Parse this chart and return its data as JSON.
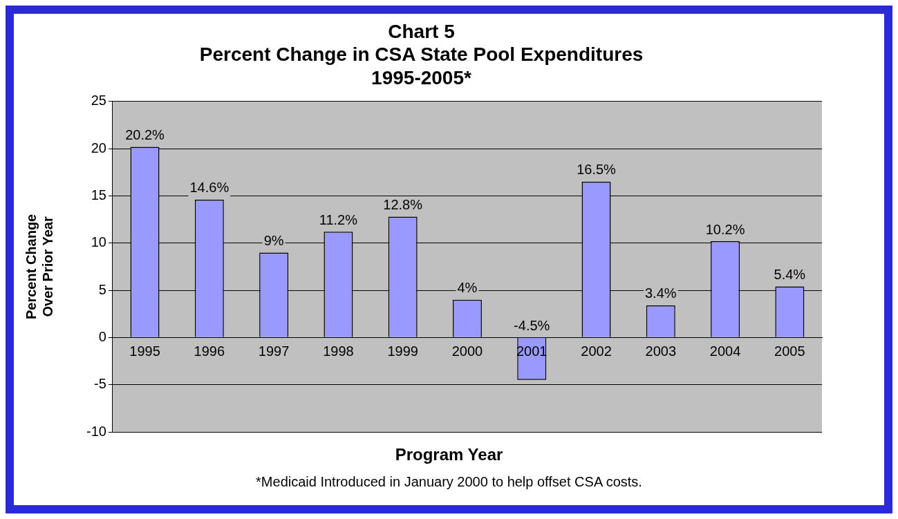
{
  "chart_data": {
    "type": "bar",
    "title": "Chart 5\nPercent Change in CSA State Pool Expenditures\n1995-2005*",
    "xlabel": "Program Year",
    "ylabel": "Percent Change\nOver Prior Year",
    "categories": [
      "1995",
      "1996",
      "1997",
      "1998",
      "1999",
      "2000",
      "2001",
      "2002",
      "2003",
      "2004",
      "2005"
    ],
    "values": [
      20.2,
      14.6,
      9,
      11.2,
      12.8,
      4,
      -4.5,
      16.5,
      3.4,
      10.2,
      5.4
    ],
    "value_labels": [
      "20.2%",
      "14.6%",
      "9%",
      "11.2%",
      "12.8%",
      "4%",
      "-4.5%",
      "16.5%",
      "3.4%",
      "10.2%",
      "5.4%"
    ],
    "color": "#9999ff",
    "ylim": [
      -10,
      25
    ],
    "yticks": [
      -10,
      -5,
      0,
      5,
      10,
      15,
      20,
      25
    ],
    "grid": "y",
    "legend": false,
    "annotations": [
      "*Medicaid Introduced in January 2000 to help offset CSA costs."
    ]
  }
}
